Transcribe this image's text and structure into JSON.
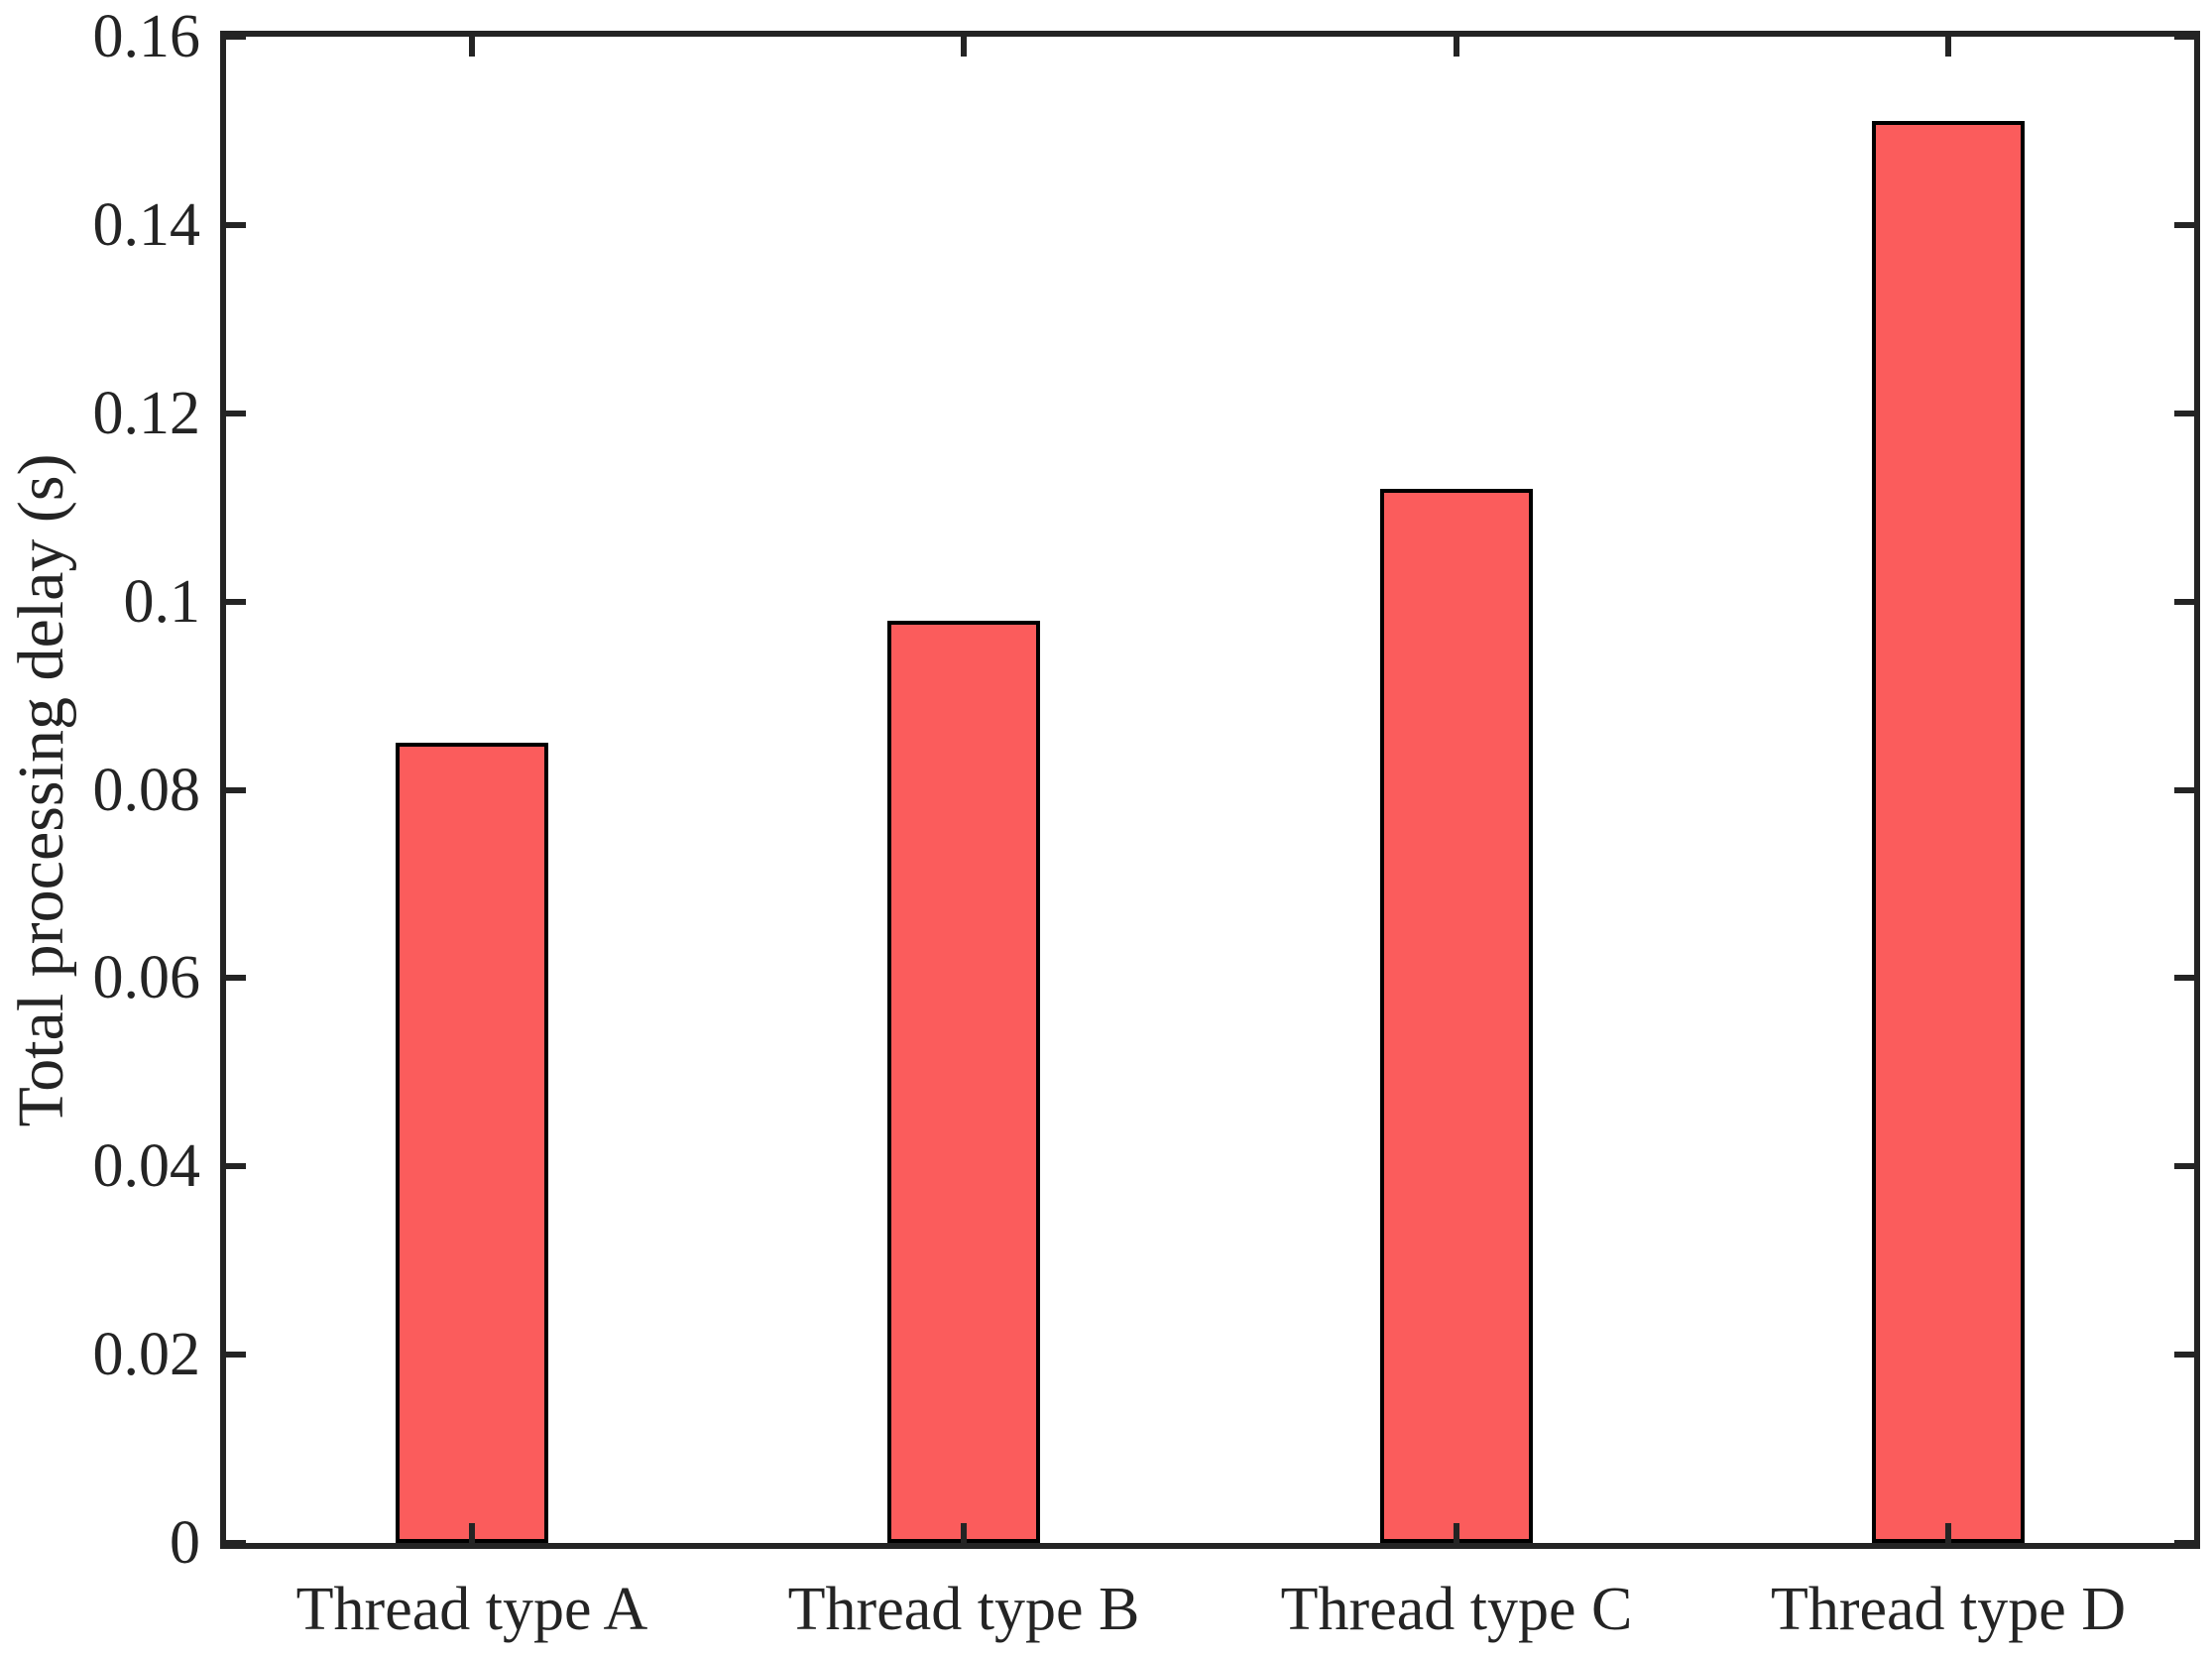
{
  "figure": {
    "background_color": "#ffffff",
    "axis_color": "#242424",
    "text_color": "#242424"
  },
  "chart_data": {
    "type": "bar",
    "title": "",
    "categories": [
      "Thread type A",
      "Thread type B",
      "Thread type C",
      "Thread type D"
    ],
    "values": [
      0.085,
      0.098,
      0.112,
      0.151
    ],
    "xlabel": "",
    "ylabel": "Total processing delay (s)",
    "ylim": [
      0,
      0.16
    ],
    "yticks": [
      0,
      0.02,
      0.04,
      0.06,
      0.08,
      0.1,
      0.12,
      0.14,
      0.16
    ],
    "ytick_labels": [
      "0",
      "0.02",
      "0.04",
      "0.06",
      "0.08",
      "0.1",
      "0.12",
      "0.14",
      "0.16"
    ],
    "grid": false,
    "legend": null,
    "bar_color": "#fb5c5c",
    "bar_edge_color": "#000000",
    "bar_width_fraction": 0.31,
    "ticks_direction": "in",
    "box": true
  }
}
